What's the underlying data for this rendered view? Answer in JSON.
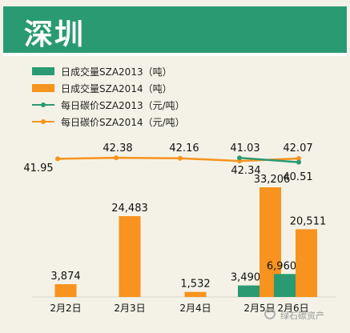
{
  "header": {
    "title": "深圳"
  },
  "watermark": "绿石碳资产",
  "colors": {
    "banner": "#2a9a72",
    "green": "#2a9a72",
    "orange": "#f7931e",
    "background": "#f4f2e6"
  },
  "chart_data": {
    "type": "bar",
    "categories": [
      "2月2日",
      "2月3日",
      "2月4日",
      "2月5日",
      "2月6日"
    ],
    "series": [
      {
        "name": "日成交量SZA2013（吨）",
        "kind": "bar",
        "color": "#2a9a72",
        "values": [
          null,
          null,
          null,
          3490,
          6960
        ],
        "labels": [
          "",
          "",
          "",
          "3,490",
          "6,960"
        ]
      },
      {
        "name": "日成交量SZA2014（吨）",
        "kind": "bar",
        "color": "#f7931e",
        "values": [
          3874,
          24483,
          1532,
          33206,
          20511
        ],
        "labels": [
          "3,874",
          "24,483",
          "1,532",
          "33,206",
          "20,511"
        ]
      },
      {
        "name": "每日碳价SZA2013（元/吨）",
        "kind": "line",
        "color": "#2a9a72",
        "values": [
          null,
          null,
          null,
          42.34,
          40.51
        ],
        "labels": [
          "",
          "",
          "",
          "42.34",
          "40.51"
        ]
      },
      {
        "name": "每日碳价SZA2014（元/吨）",
        "kind": "line",
        "color": "#f7931e",
        "values": [
          41.95,
          42.38,
          42.16,
          41.03,
          42.07
        ],
        "labels": [
          "41.95",
          "42.38",
          "42.16",
          "41.03",
          "42.07"
        ]
      }
    ],
    "legend": "top-left",
    "grid": false
  }
}
